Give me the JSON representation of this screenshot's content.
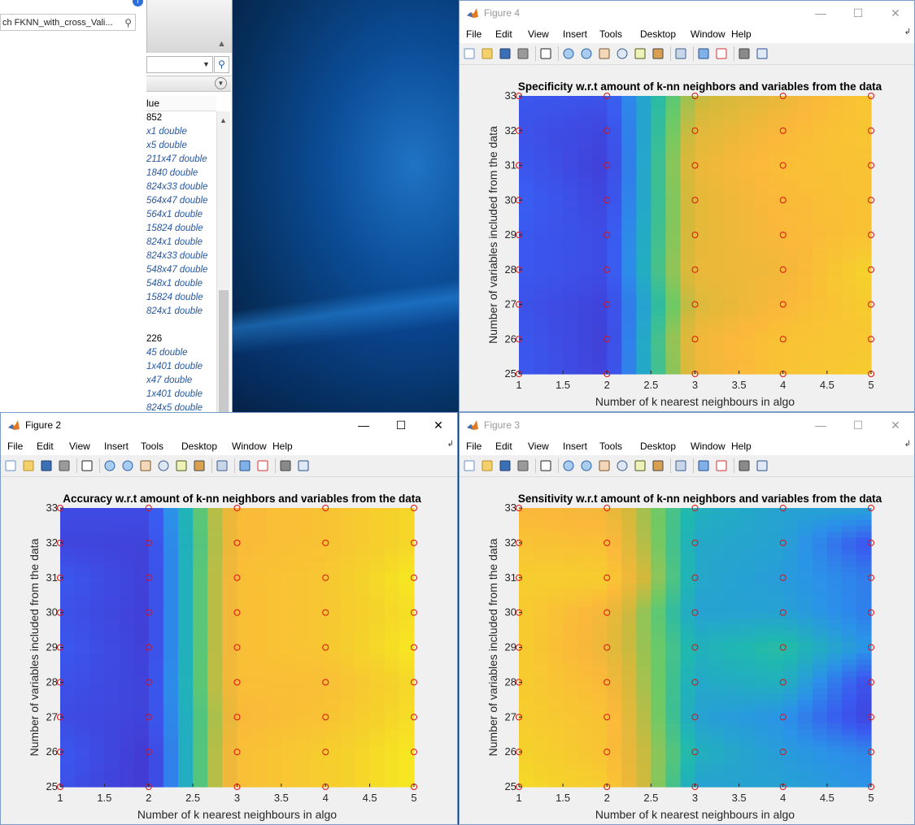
{
  "workspace": {
    "search_text": "ch FKNN_with_cross_Vali...",
    "column_header": "lue",
    "rows": [
      {
        "text": "852",
        "link": false
      },
      {
        "text": "x1 double",
        "link": true
      },
      {
        "text": "x5 double",
        "link": true
      },
      {
        "text": "211x47 double",
        "link": true
      },
      {
        "text": "1840 double",
        "link": true
      },
      {
        "text": "824x33 double",
        "link": true
      },
      {
        "text": "564x47 double",
        "link": true
      },
      {
        "text": "564x1 double",
        "link": true
      },
      {
        "text": "15824 double",
        "link": true
      },
      {
        "text": "824x1 double",
        "link": true
      },
      {
        "text": "824x33 double",
        "link": true
      },
      {
        "text": "548x47 double",
        "link": true
      },
      {
        "text": "548x1 double",
        "link": true
      },
      {
        "text": "15824 double",
        "link": true
      },
      {
        "text": "824x1 double",
        "link": true
      },
      {
        "text": "",
        "link": false
      },
      {
        "text": "226",
        "link": false
      },
      {
        "text": "45 double",
        "link": true
      },
      {
        "text": "1x401 double",
        "link": true
      },
      {
        "text": "x47 double",
        "link": true
      },
      {
        "text": "1x401 double",
        "link": true
      },
      {
        "text": "824x5 double",
        "link": true
      }
    ]
  },
  "menu": [
    "File",
    "Edit",
    "View",
    "Insert",
    "Tools",
    "Desktop",
    "Window",
    "Help"
  ],
  "window_controls": {
    "minimize": "—",
    "maximize": "☐",
    "close": "✕"
  },
  "figures": {
    "fig4": {
      "window_title": "Figure 4",
      "active": false,
      "chart": {
        "type": "heatmap",
        "title": "Specificity w.r.t amount of k-nn neighbors and variables from the data",
        "xlabel": "Number of k nearest neighbours in algo",
        "ylabel": "Number of variables included from the data",
        "xlim": [
          1,
          5
        ],
        "ylim": [
          25,
          33
        ],
        "xticks": [
          "1",
          "1.5",
          "2",
          "2.5",
          "3",
          "3.5",
          "4",
          "4.5",
          "5"
        ],
        "yticks": [
          "25",
          "26",
          "27",
          "28",
          "29",
          "30",
          "31",
          "32",
          "33"
        ],
        "colors": [
          "#4433cc",
          "#3a5af0",
          "#2b93e8",
          "#1fb8b0",
          "#6cca66",
          "#d3b93b",
          "#fbb83a",
          "#f5d22b",
          "#f9f719"
        ],
        "x": [
          1,
          2,
          3,
          4,
          5
        ],
        "y": [
          25,
          26,
          27,
          28,
          29,
          30,
          31,
          32,
          33
        ],
        "z": [
          [
            0.12,
            0.05,
            0.7,
            0.8,
            0.85
          ],
          [
            0.12,
            0.04,
            0.72,
            0.8,
            0.82
          ],
          [
            0.1,
            0.05,
            0.65,
            0.75,
            0.85
          ],
          [
            0.12,
            0.08,
            0.7,
            0.72,
            0.88
          ],
          [
            0.12,
            0.08,
            0.68,
            0.75,
            0.8
          ],
          [
            0.14,
            0.06,
            0.68,
            0.76,
            0.8
          ],
          [
            0.12,
            0.04,
            0.7,
            0.78,
            0.8
          ],
          [
            0.1,
            0.06,
            0.66,
            0.75,
            0.82
          ],
          [
            0.12,
            0.1,
            0.6,
            0.7,
            0.82
          ]
        ]
      }
    },
    "fig2": {
      "window_title": "Figure 2",
      "active": true,
      "chart": {
        "type": "heatmap",
        "title": "Accuracy w.r.t amount of k-nn neighbors and variables from the data",
        "xlabel": "Number of k nearest neighbours in algo",
        "ylabel": "Number of variables included from the data",
        "xlim": [
          1,
          5
        ],
        "ylim": [
          25,
          33
        ],
        "xticks": [
          "1",
          "1.5",
          "2",
          "2.5",
          "3",
          "3.5",
          "4",
          "4.5",
          "5"
        ],
        "yticks": [
          "25",
          "26",
          "27",
          "28",
          "29",
          "30",
          "31",
          "32",
          "33"
        ],
        "colors": [
          "#4433cc",
          "#3a5af0",
          "#2b93e8",
          "#1fb8b0",
          "#6cca66",
          "#d3b93b",
          "#fbb83a",
          "#f5d22b",
          "#f9f719"
        ],
        "x": [
          1,
          2,
          3,
          4,
          5
        ],
        "y": [
          25,
          26,
          27,
          28,
          29,
          30,
          31,
          32,
          33
        ],
        "z": [
          [
            0.1,
            0.02,
            0.78,
            0.85,
            0.95
          ],
          [
            0.12,
            0.02,
            0.78,
            0.85,
            0.95
          ],
          [
            0.08,
            0.05,
            0.75,
            0.8,
            0.92
          ],
          [
            0.1,
            0.05,
            0.78,
            0.78,
            0.9
          ],
          [
            0.12,
            0.04,
            0.78,
            0.82,
            0.95
          ],
          [
            0.1,
            0.04,
            0.78,
            0.82,
            0.92
          ],
          [
            0.12,
            0.04,
            0.78,
            0.82,
            0.95
          ],
          [
            0.06,
            0.05,
            0.76,
            0.8,
            0.9
          ],
          [
            0.08,
            0.08,
            0.76,
            0.8,
            0.9
          ]
        ]
      }
    },
    "fig3": {
      "window_title": "Figure 3",
      "active": false,
      "chart": {
        "type": "heatmap",
        "title": "Sensitivity w.r.t amount of k-nn neighbors and variables from the data",
        "xlabel": "Number of k nearest neighbours in algo",
        "ylabel": "Number of variables included from the data",
        "xlim": [
          1,
          5
        ],
        "ylim": [
          25,
          33
        ],
        "xticks": [
          "1",
          "1.5",
          "2",
          "2.5",
          "3",
          "3.5",
          "4",
          "4.5",
          "5"
        ],
        "yticks": [
          "25",
          "26",
          "27",
          "28",
          "29",
          "30",
          "31",
          "32",
          "33"
        ],
        "colors": [
          "#4433cc",
          "#3a5af0",
          "#2b93e8",
          "#1fb8b0",
          "#6cca66",
          "#d3b93b",
          "#fbb83a",
          "#f5d22b",
          "#f9f719"
        ],
        "x": [
          1,
          2,
          3,
          4,
          5
        ],
        "y": [
          25,
          26,
          27,
          28,
          29,
          30,
          31,
          32,
          33
        ],
        "z": [
          [
            0.9,
            0.85,
            0.3,
            0.3,
            0.25
          ],
          [
            0.88,
            0.8,
            0.35,
            0.28,
            0.22
          ],
          [
            0.85,
            0.8,
            0.3,
            0.25,
            0.05
          ],
          [
            0.85,
            0.75,
            0.32,
            0.35,
            0.08
          ],
          [
            0.85,
            0.7,
            0.35,
            0.4,
            0.25
          ],
          [
            0.85,
            0.72,
            0.3,
            0.3,
            0.2
          ],
          [
            0.85,
            0.85,
            0.32,
            0.28,
            0.2
          ],
          [
            0.8,
            0.78,
            0.32,
            0.3,
            0.1
          ],
          [
            0.75,
            0.72,
            0.35,
            0.3,
            0.3
          ]
        ]
      }
    }
  }
}
